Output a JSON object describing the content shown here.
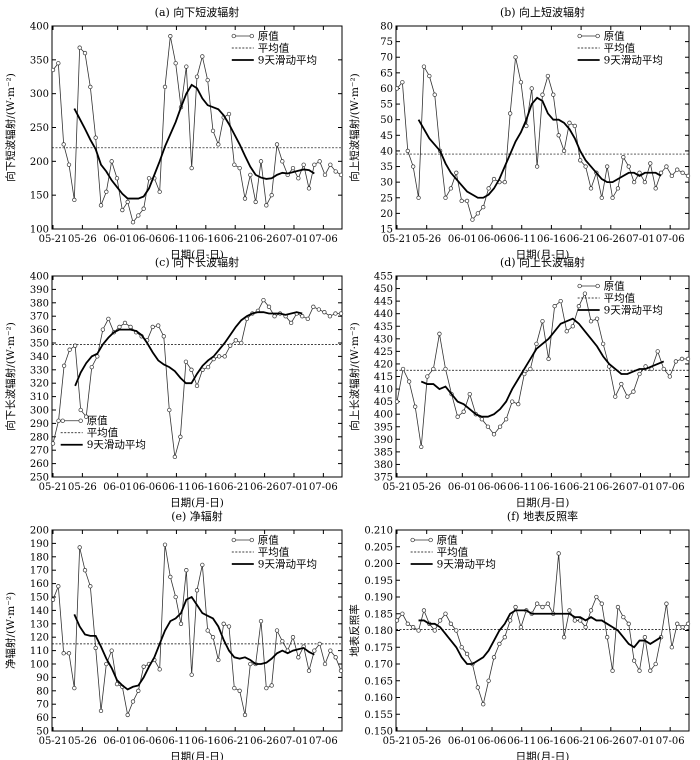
{
  "chart_data": [
    {
      "type": "line",
      "title": "(a) 向下短波辐射",
      "xlabel": "日期(月-日)",
      "ylabel": "向下短波辐射/(W·m⁻²)",
      "xticks": [
        "05-21",
        "05-26",
        "06-01",
        "06-06",
        "06-11",
        "06-16",
        "06-21",
        "06-26",
        "07-01",
        "07-06"
      ],
      "ylim": [
        100,
        400
      ],
      "yticks": [
        100,
        150,
        200,
        250,
        300,
        350,
        400
      ],
      "legend": {
        "position": "top-right",
        "labels": [
          "原值",
          "平均值",
          "9天滑动平均"
        ]
      },
      "series": [
        {
          "name": "原值",
          "values": [
            335,
            345,
            225,
            195,
            143,
            368,
            360,
            310,
            235,
            135,
            155,
            200,
            175,
            128,
            140,
            110,
            120,
            130,
            175,
            175,
            155,
            310,
            385,
            345,
            280,
            340,
            190,
            325,
            355,
            320,
            245,
            225,
            265,
            270,
            195,
            190,
            145,
            180,
            140,
            200,
            135,
            150,
            225,
            200,
            180,
            190,
            175,
            195,
            160,
            195,
            200,
            180,
            195,
            185,
            180
          ]
        },
        {
          "name": "平均值",
          "values": [
            220
          ]
        },
        {
          "name": "9天滑动平均",
          "start_index": 4,
          "values": [
            278,
            263,
            248,
            232,
            218,
            195,
            185,
            172,
            162,
            152,
            145,
            145,
            145,
            148,
            160,
            180,
            200,
            222,
            240,
            258,
            280,
            300,
            313,
            308,
            293,
            283,
            280,
            277,
            268,
            255,
            240,
            225,
            208,
            192,
            180,
            176,
            174,
            175,
            180,
            183,
            182,
            184,
            186,
            188,
            187,
            182
          ]
        }
      ]
    },
    {
      "type": "line",
      "title": "(b) 向上短波辐射",
      "xlabel": "日期(月-日)",
      "ylabel": "向上短波辐射/(W·m⁻²)",
      "xticks": [
        "05-21",
        "05-26",
        "06-01",
        "06-06",
        "06-11",
        "06-16",
        "06-21",
        "06-26",
        "07-01",
        "07-06"
      ],
      "ylim": [
        15,
        80
      ],
      "yticks": [
        15,
        20,
        25,
        30,
        35,
        40,
        45,
        50,
        55,
        60,
        65,
        70,
        75,
        80
      ],
      "legend": {
        "position": "top-right",
        "labels": [
          "原值",
          "平均值",
          "9天滑动平均"
        ]
      },
      "series": [
        {
          "name": "原值",
          "values": [
            60,
            62,
            40,
            35,
            25,
            67,
            64,
            58,
            40,
            25,
            28,
            33,
            24,
            24,
            18,
            20,
            22,
            28,
            31,
            30,
            30,
            52,
            70,
            62,
            48,
            60,
            35,
            58,
            64,
            58,
            45,
            40,
            49,
            48,
            37,
            35,
            28,
            33,
            25,
            35,
            25,
            28,
            38,
            35,
            30,
            33,
            30,
            36,
            28,
            33,
            35,
            32,
            34,
            33,
            32
          ]
        },
        {
          "name": "平均值",
          "values": [
            39
          ]
        },
        {
          "name": "9天滑动平均",
          "start_index": 4,
          "values": [
            50,
            47,
            44,
            42,
            40,
            36,
            33,
            31,
            29,
            27,
            26,
            25,
            25,
            26,
            28,
            31,
            35,
            39,
            43,
            46,
            50,
            55,
            57,
            56,
            52,
            50,
            50,
            49,
            47,
            44,
            40,
            37,
            35,
            33,
            31,
            30,
            30,
            31,
            32,
            33,
            33,
            32,
            33,
            33,
            33,
            32
          ]
        }
      ]
    },
    {
      "type": "line",
      "title": "(c) 向下长波辐射",
      "xlabel": "日期(月-日)",
      "ylabel": "向下长波辐射/(W·m⁻²)",
      "xticks": [
        "05-21",
        "05-26",
        "06-01",
        "06-06",
        "06-11",
        "06-16",
        "06-21",
        "06-26",
        "07-01",
        "07-06"
      ],
      "ylim": [
        250,
        400
      ],
      "yticks": [
        250,
        260,
        270,
        280,
        290,
        300,
        310,
        320,
        330,
        340,
        350,
        360,
        370,
        380,
        390,
        400
      ],
      "legend": {
        "position": "bottom-left",
        "labels": [
          "原值",
          "平均值",
          "9天滑动平均"
        ]
      },
      "series": [
        {
          "name": "原值",
          "values": [
            275,
            292,
            333,
            345,
            348,
            300,
            295,
            332,
            340,
            360,
            368,
            358,
            362,
            365,
            362,
            358,
            355,
            352,
            362,
            363,
            355,
            300,
            265,
            280,
            336,
            330,
            318,
            330,
            332,
            338,
            340,
            340,
            348,
            352,
            350,
            368,
            372,
            374,
            382,
            377,
            370,
            372,
            370,
            365,
            372,
            370,
            368,
            377,
            375,
            373,
            370,
            372,
            372
          ]
        },
        {
          "name": "平均值",
          "values": [
            349
          ]
        },
        {
          "name": "9天滑动平均",
          "start_index": 4,
          "values": [
            318,
            328,
            335,
            340,
            342,
            349,
            354,
            358,
            360,
            360,
            360,
            359,
            356,
            350,
            343,
            337,
            334,
            332,
            329,
            324,
            320,
            320,
            327,
            333,
            337,
            340,
            345,
            350,
            356,
            362,
            367,
            370,
            372,
            373,
            373,
            372,
            372,
            372,
            371,
            372,
            373,
            372
          ]
        }
      ]
    },
    {
      "type": "line",
      "title": "(d) 向上长波辐射",
      "xlabel": "日期(月-日)",
      "ylabel": "向上长波辐射/(W·m⁻²)",
      "xticks": [
        "05-21",
        "05-26",
        "06-01",
        "06-06",
        "06-11",
        "06-16",
        "06-21",
        "06-26",
        "07-01",
        "07-06"
      ],
      "ylim": [
        375,
        455
      ],
      "yticks": [
        375,
        380,
        385,
        390,
        395,
        400,
        405,
        410,
        415,
        420,
        425,
        430,
        435,
        440,
        445,
        450,
        455
      ],
      "legend": {
        "position": "top-right",
        "labels": [
          "原值",
          "平均值",
          "9天滑动平均"
        ]
      },
      "series": [
        {
          "name": "原值",
          "values": [
            405,
            418,
            413,
            403,
            387,
            415,
            418,
            432,
            418,
            408,
            399,
            401,
            408,
            400,
            398,
            395,
            392,
            395,
            398,
            405,
            404,
            416,
            418,
            428,
            437,
            422,
            443,
            445,
            433,
            435,
            443,
            448,
            437,
            438,
            428,
            419,
            407,
            412,
            407,
            409,
            416,
            419,
            418,
            425,
            418,
            415,
            421,
            422,
            422
          ]
        },
        {
          "name": "平均值",
          "values": [
            417.5
          ]
        },
        {
          "name": "9天滑动平均",
          "start_index": 4,
          "values": [
            413,
            412,
            412,
            410,
            411,
            408,
            405,
            404,
            402,
            400,
            399,
            399,
            400,
            402,
            405,
            410,
            414,
            418,
            422,
            426,
            428,
            430,
            433,
            436,
            437,
            438,
            436,
            433,
            430,
            427,
            423,
            420,
            418,
            416,
            416,
            417,
            418,
            418,
            419,
            420,
            421
          ]
        }
      ]
    },
    {
      "type": "line",
      "title": "(e) 净辐射",
      "xlabel": "日期(月-日)",
      "ylabel": "净辐射/(W·m⁻²)",
      "xticks": [
        "05-21",
        "05-26",
        "06-01",
        "06-06",
        "06-11",
        "06-16",
        "06-21",
        "06-26",
        "07-01",
        "07-06"
      ],
      "ylim": [
        50,
        200
      ],
      "yticks": [
        50,
        60,
        70,
        80,
        90,
        100,
        110,
        120,
        130,
        140,
        150,
        160,
        170,
        180,
        190,
        200
      ],
      "legend": {
        "position": "top-right",
        "labels": [
          "原值",
          "平均值",
          "9天滑动平均"
        ]
      },
      "series": [
        {
          "name": "原值",
          "values": [
            148,
            158,
            108,
            108,
            82,
            187,
            170,
            158,
            112,
            65,
            100,
            110,
            85,
            83,
            62,
            72,
            80,
            98,
            100,
            103,
            96,
            189,
            165,
            150,
            130,
            170,
            92,
            155,
            174,
            125,
            120,
            103,
            130,
            128,
            82,
            80,
            62,
            100,
            100,
            132,
            82,
            84,
            125,
            117,
            110,
            120,
            105,
            113,
            95,
            110,
            115,
            100,
            110,
            105,
            95
          ]
        },
        {
          "name": "平均值",
          "values": [
            115
          ]
        },
        {
          "name": "9天滑动平均",
          "start_index": 4,
          "values": [
            137,
            128,
            122,
            121,
            121,
            113,
            104,
            97,
            88,
            84,
            81,
            83,
            84,
            90,
            98,
            105,
            115,
            125,
            132,
            134,
            138,
            148,
            150,
            144,
            138,
            136,
            134,
            128,
            118,
            110,
            105,
            104,
            105,
            103,
            100,
            100,
            101,
            104,
            108,
            110,
            108,
            110,
            111,
            112,
            109,
            107
          ]
        }
      ]
    },
    {
      "type": "line",
      "title": "(f) 地表反照率",
      "xlabel": "日期(月-日)",
      "ylabel": "地表反照率",
      "xticks": [
        "05-21",
        "05-26",
        "06-01",
        "06-06",
        "06-11",
        "06-16",
        "06-21",
        "06-26",
        "07-01",
        "07-06"
      ],
      "ylim": [
        0.15,
        0.21
      ],
      "yticks": [
        "0.150",
        "0.155",
        "0.160",
        "0.165",
        "0.170",
        "0.175",
        "0.180",
        "0.185",
        "0.190",
        "0.195",
        "0.200",
        "0.205",
        "0.210"
      ],
      "legend": {
        "position": "top-left",
        "labels": [
          "原值",
          "平均值",
          "9天滑动平均"
        ]
      },
      "series": [
        {
          "name": "原值",
          "values": [
            0.183,
            0.185,
            0.182,
            0.181,
            0.18,
            0.186,
            0.182,
            0.18,
            0.183,
            0.185,
            0.182,
            0.18,
            0.175,
            0.173,
            0.17,
            0.163,
            0.158,
            0.165,
            0.172,
            0.176,
            0.178,
            0.183,
            0.187,
            0.181,
            0.186,
            0.185,
            0.188,
            0.187,
            0.188,
            0.185,
            0.203,
            0.178,
            0.186,
            0.183,
            0.183,
            0.181,
            0.186,
            0.19,
            0.188,
            0.178,
            0.168,
            0.187,
            0.184,
            0.182,
            0.171,
            0.168,
            0.178,
            0.168,
            0.17,
            0.178,
            0.188,
            0.175,
            0.182,
            0.181,
            0.182
          ]
        },
        {
          "name": "平均值",
          "values": [
            0.1803
          ]
        },
        {
          "name": "9天滑动平均",
          "start_index": 4,
          "values": [
            0.183,
            0.183,
            0.182,
            0.182,
            0.181,
            0.179,
            0.177,
            0.175,
            0.172,
            0.17,
            0.17,
            0.171,
            0.172,
            0.174,
            0.177,
            0.18,
            0.182,
            0.185,
            0.186,
            0.186,
            0.186,
            0.185,
            0.185,
            0.185,
            0.185,
            0.185,
            0.185,
            0.185,
            0.185,
            0.184,
            0.184,
            0.183,
            0.184,
            0.183,
            0.183,
            0.182,
            0.181,
            0.18,
            0.178,
            0.176,
            0.175,
            0.177,
            0.177,
            0.176,
            0.177,
            0.178
          ]
        }
      ]
    }
  ]
}
